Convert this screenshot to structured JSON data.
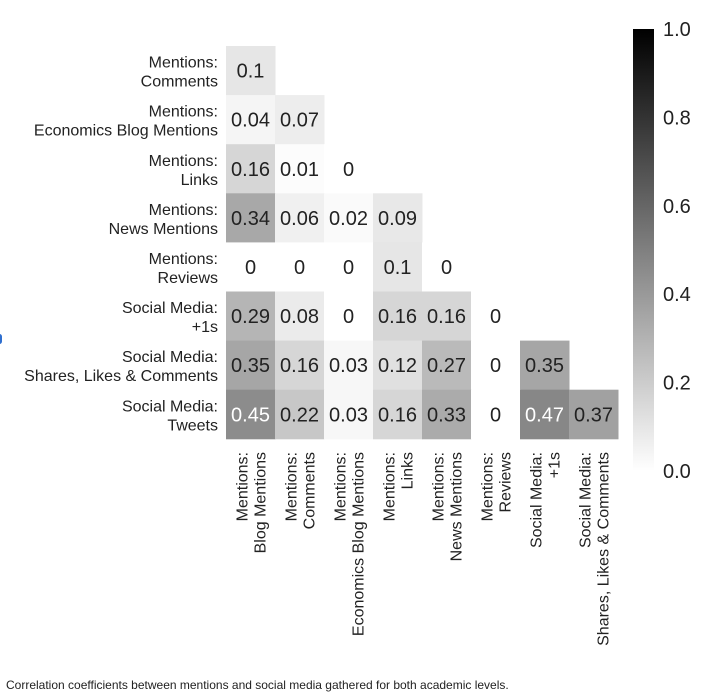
{
  "chart_data": {
    "type": "heatmap",
    "colormap": "greys",
    "row_labels": [
      [
        "Mentions:",
        "Comments"
      ],
      [
        "Mentions:",
        "Economics Blog Mentions"
      ],
      [
        "Mentions:",
        "Links"
      ],
      [
        "Mentions:",
        "News Mentions"
      ],
      [
        "Mentions:",
        "Reviews"
      ],
      [
        "Social Media:",
        "+1s"
      ],
      [
        "Social Media:",
        "Shares, Likes & Comments"
      ],
      [
        "Social Media:",
        "Tweets"
      ]
    ],
    "col_labels": [
      [
        "Mentions:",
        "Blog Mentions"
      ],
      [
        "Mentions:",
        "Comments"
      ],
      [
        "Mentions:",
        "Economics Blog Mentions"
      ],
      [
        "Mentions:",
        "Links"
      ],
      [
        "Mentions:",
        "News Mentions"
      ],
      [
        "Mentions:",
        "Reviews"
      ],
      [
        "Social Media:",
        "+1s"
      ],
      [
        "Social Media:",
        "Shares, Likes & Comments"
      ]
    ],
    "values": [
      [
        0.1
      ],
      [
        0.04,
        0.07
      ],
      [
        0.16,
        0.01,
        0
      ],
      [
        0.34,
        0.06,
        0.02,
        0.09
      ],
      [
        0,
        0,
        0,
        0.1,
        0
      ],
      [
        0.29,
        0.08,
        0,
        0.16,
        0.16,
        0
      ],
      [
        0.35,
        0.16,
        0.03,
        0.12,
        0.27,
        0,
        0.35
      ],
      [
        0.45,
        0.22,
        0.03,
        0.16,
        0.33,
        0,
        0.47,
        0.37
      ]
    ],
    "colorbar": {
      "range": [
        0.0,
        1.0
      ],
      "ticks": [
        "1.0",
        "0.8",
        "0.6",
        "0.4",
        "0.2",
        "0.0"
      ]
    }
  },
  "caption": "Correlation coefficients between mentions and social media gathered for both academic levels."
}
